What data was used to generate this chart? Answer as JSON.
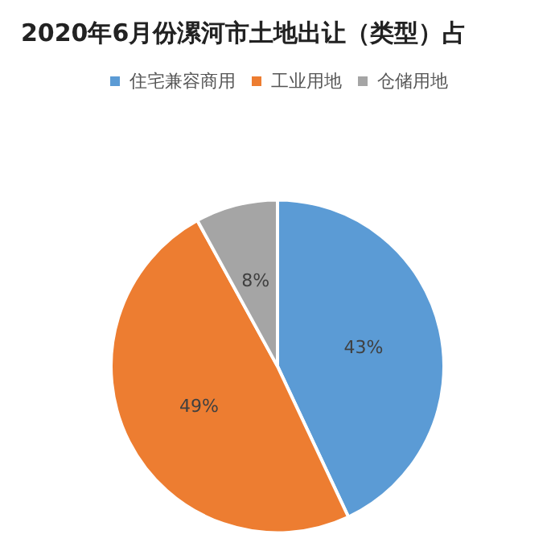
{
  "chart_data": {
    "type": "pie",
    "title": "2020年6月份漯河市土地出让（类型）占",
    "categories": [
      "住宅兼容商用",
      "工业用地",
      "仓储用地"
    ],
    "values": [
      43,
      49,
      8
    ],
    "colors": [
      "#5b9bd5",
      "#ed7d31",
      "#a5a5a5"
    ],
    "value_labels": [
      "43%",
      "49%",
      "8%"
    ],
    "legend": "top"
  }
}
